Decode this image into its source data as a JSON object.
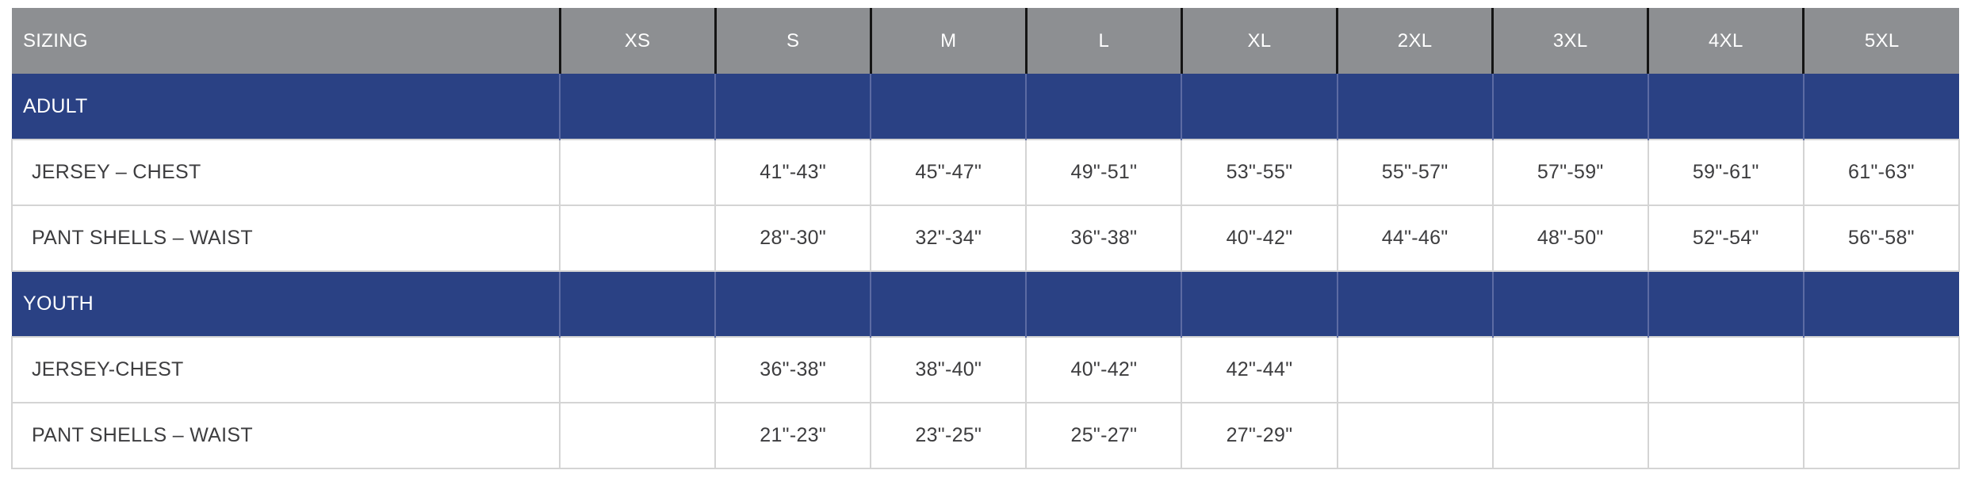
{
  "chart_data": {
    "type": "table",
    "title": "SIZING",
    "header": {
      "label": "SIZING",
      "sizes": [
        "XS",
        "S",
        "M",
        "L",
        "XL",
        "2XL",
        "3XL",
        "4XL",
        "5XL"
      ]
    },
    "sections": [
      {
        "title": "ADULT",
        "rows": [
          {
            "label": "JERSEY – CHEST",
            "values": [
              "",
              "41\"-43\"",
              "45\"-47\"",
              "49\"-51\"",
              "53\"-55\"",
              "55\"-57\"",
              "57\"-59\"",
              "59\"-61\"",
              "61\"-63\""
            ]
          },
          {
            "label": "PANT SHELLS – WAIST",
            "values": [
              "",
              "28\"-30\"",
              "32\"-34\"",
              "36\"-38\"",
              "40\"-42\"",
              "44\"-46\"",
              "48\"-50\"",
              "52\"-54\"",
              "56\"-58\""
            ]
          }
        ]
      },
      {
        "title": "YOUTH",
        "rows": [
          {
            "label": "JERSEY-CHEST",
            "values": [
              "",
              "36\"-38\"",
              "38\"-40\"",
              "40\"-42\"",
              "42\"-44\"",
              "",
              "",
              "",
              ""
            ]
          },
          {
            "label": "PANT SHELLS – WAIST",
            "values": [
              "",
              "21\"-23\"",
              "23\"-25\"",
              "25\"-27\"",
              "27\"-29\"",
              "",
              "",
              "",
              ""
            ]
          }
        ]
      }
    ]
  },
  "colors": {
    "header_bg": "#8d8f92",
    "header_text": "#ffffff",
    "header_divider": "#141414",
    "section_bg": "#2a4184",
    "section_divider": "#5c6ba3",
    "body_border": "#d4d4d4",
    "body_text": "#3d3d3f"
  }
}
